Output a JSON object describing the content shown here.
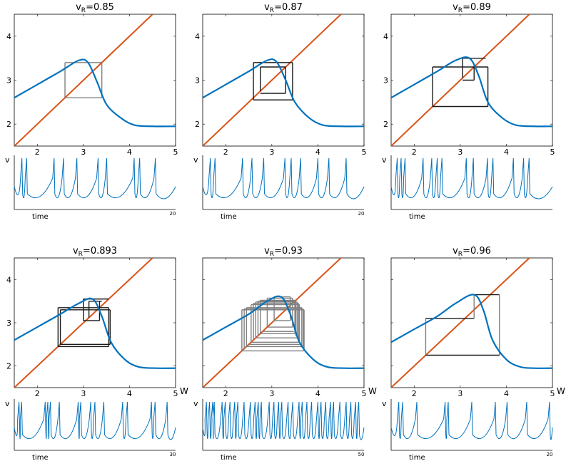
{
  "curve_color": "#0072BD",
  "diagonal_color": "#D95319",
  "cobweb_color_dark": "#1a1a1a",
  "cobweb_color_light": "#808080",
  "trace_color": "#0072BD",
  "chart_data": [
    {
      "type": "line",
      "title_main": "v",
      "title_sub": "R",
      "title_value": "=0.85",
      "xlabel": "",
      "ylabel": "",
      "xlim": [
        1.5,
        5
      ],
      "ylim": [
        1.5,
        4.5
      ],
      "xticks": [
        "2",
        "3",
        "4",
        "5"
      ],
      "yticks": [
        "2",
        "3",
        "4"
      ],
      "series": [
        {
          "x": [
            1.5,
            2.0,
            2.5,
            2.9,
            3.1,
            3.3,
            3.5,
            3.8,
            4.1,
            4.5,
            5.0
          ],
          "y": [
            2.6,
            2.9,
            3.2,
            3.45,
            3.4,
            2.95,
            2.45,
            2.15,
            1.98,
            1.95,
            1.95
          ]
        },
        {
          "x": [
            1.5,
            4.5
          ],
          "y": [
            1.5,
            4.5
          ]
        }
      ],
      "cobweb": {
        "segments": [
          [
            2.6,
            2.6,
            2.6,
            3.4
          ],
          [
            2.6,
            3.4,
            3.4,
            3.4
          ],
          [
            3.4,
            3.4,
            3.4,
            2.6
          ],
          [
            3.4,
            2.6,
            2.6,
            2.6
          ]
        ],
        "style": "light"
      },
      "trace": {
        "ylabel": "v",
        "xlabel": "time",
        "tmax": "20",
        "spike_times": [
          0.7,
          1.3,
          4.8,
          6.0,
          7.7,
          10.4,
          11.5,
          15.0,
          15.7,
          17.7
        ]
      }
    },
    {
      "type": "line",
      "title_main": "v",
      "title_sub": "R",
      "title_value": "=0.87",
      "xlabel": "",
      "ylabel": "",
      "xlim": [
        1.5,
        5
      ],
      "ylim": [
        1.5,
        4.5
      ],
      "xticks": [
        "2",
        "3",
        "4",
        "5"
      ],
      "yticks": [
        "2",
        "3",
        "4"
      ],
      "series": [
        {
          "x": [
            1.5,
            2.0,
            2.5,
            2.9,
            3.1,
            3.3,
            3.5,
            3.8,
            4.1,
            4.5,
            5.0
          ],
          "y": [
            2.6,
            2.9,
            3.2,
            3.45,
            3.42,
            3.0,
            2.5,
            2.15,
            1.98,
            1.95,
            1.95
          ]
        },
        {
          "x": [
            1.5,
            4.5
          ],
          "y": [
            1.5,
            4.5
          ]
        }
      ],
      "cobweb": {
        "segments": [
          [
            2.6,
            2.55,
            2.6,
            3.4
          ],
          [
            2.6,
            3.4,
            3.45,
            3.4
          ],
          [
            3.45,
            3.4,
            3.45,
            2.55
          ],
          [
            3.45,
            2.55,
            2.6,
            2.55
          ],
          [
            2.75,
            2.75,
            2.75,
            3.3
          ],
          [
            2.75,
            3.3,
            3.3,
            3.3
          ],
          [
            3.3,
            3.3,
            3.3,
            2.7
          ],
          [
            3.3,
            2.7,
            2.75,
            2.7
          ]
        ],
        "style": "dark"
      },
      "trace": {
        "ylabel": "v",
        "xlabel": "time",
        "tmax": "20",
        "spike_times": [
          0.7,
          1.3,
          4.8,
          6.0,
          7.5,
          10.2,
          11.0,
          12.2,
          14.4,
          15.8,
          18.0
        ]
      }
    },
    {
      "type": "line",
      "title_main": "v",
      "title_sub": "R",
      "title_value": "=0.89",
      "xlabel": "",
      "ylabel": "",
      "xlim": [
        1.5,
        5
      ],
      "ylim": [
        1.5,
        4.5
      ],
      "xticks": [
        "2",
        "3",
        "4",
        "5"
      ],
      "yticks": [
        "2",
        "3",
        "4"
      ],
      "series": [
        {
          "x": [
            1.5,
            2.0,
            2.5,
            2.9,
            3.2,
            3.4,
            3.6,
            3.9,
            4.2,
            4.6,
            5.0
          ],
          "y": [
            2.6,
            2.9,
            3.2,
            3.45,
            3.5,
            3.1,
            2.5,
            2.15,
            1.98,
            1.95,
            1.95
          ]
        },
        {
          "x": [
            1.5,
            4.5
          ],
          "y": [
            1.5,
            4.5
          ]
        }
      ],
      "cobweb": {
        "segments": [
          [
            2.4,
            2.4,
            2.4,
            3.3
          ],
          [
            2.4,
            3.3,
            3.6,
            3.3
          ],
          [
            3.6,
            3.3,
            3.6,
            2.4
          ],
          [
            3.6,
            2.4,
            2.4,
            2.4
          ],
          [
            3.05,
            3.05,
            3.05,
            3.5
          ],
          [
            3.05,
            3.5,
            3.55,
            3.5
          ],
          [
            3.3,
            3.0,
            3.3,
            3.35
          ],
          [
            3.05,
            3.0,
            3.3,
            3.0
          ]
        ],
        "style": "dark"
      },
      "trace": {
        "ylabel": "v",
        "xlabel": "time",
        "tmax": "",
        "spike_times": [
          0.5,
          1.0,
          1.5,
          3.8,
          4.9,
          5.6,
          6.2,
          9.3,
          10.2,
          12.0,
          12.7,
          15.3,
          16.6,
          17.3
        ]
      }
    },
    {
      "type": "line",
      "title_main": "v",
      "title_sub": "R",
      "title_value": "=0.893",
      "xlabel": "",
      "ylabel": "",
      "xlim": [
        1.5,
        5
      ],
      "ylim": [
        1.5,
        4.5
      ],
      "xticks": [
        "2",
        "3",
        "4",
        "5"
      ],
      "yticks": [
        "2",
        "3",
        "4"
      ],
      "series": [
        {
          "x": [
            1.5,
            2.0,
            2.5,
            2.9,
            3.2,
            3.4,
            3.6,
            3.9,
            4.2,
            4.6,
            5.0
          ],
          "y": [
            2.6,
            2.9,
            3.2,
            3.45,
            3.55,
            3.15,
            2.55,
            2.15,
            1.98,
            1.95,
            1.95
          ]
        },
        {
          "x": [
            1.5,
            4.5
          ],
          "y": [
            1.5,
            4.5
          ]
        }
      ],
      "cobweb": {
        "segments": [
          [
            2.45,
            2.45,
            2.45,
            3.35
          ],
          [
            2.45,
            3.35,
            3.55,
            3.35
          ],
          [
            3.55,
            3.35,
            3.55,
            2.45
          ],
          [
            3.55,
            2.45,
            2.45,
            2.45
          ],
          [
            2.5,
            2.5,
            2.5,
            3.3
          ],
          [
            2.5,
            3.3,
            3.58,
            3.3
          ],
          [
            3.58,
            3.3,
            3.58,
            2.5
          ],
          [
            3.58,
            2.5,
            2.5,
            2.5
          ],
          [
            3.0,
            3.05,
            3.0,
            3.55
          ],
          [
            3.0,
            3.55,
            3.55,
            3.55
          ],
          [
            3.35,
            3.05,
            3.35,
            3.5
          ],
          [
            3.0,
            3.05,
            3.35,
            3.05
          ],
          [
            3.12,
            3.12,
            3.12,
            3.5
          ],
          [
            3.12,
            3.5,
            3.4,
            3.5
          ]
        ],
        "style": "dark"
      },
      "trace": {
        "ylabel": "v",
        "xlabel": "time",
        "tmax": "30",
        "spike_times": [
          0.5,
          1.0,
          5.5,
          6.0,
          6.5,
          8.2,
          11.8,
          12.3,
          14.2,
          15.0,
          16.7,
          20.3,
          21.2,
          25.8,
          26.5,
          28.8
        ]
      }
    },
    {
      "type": "line",
      "title_main": "v",
      "title_sub": "R",
      "title_value": "=0.93",
      "xlabel": "",
      "ylabel": "",
      "xlim": [
        1.5,
        5
      ],
      "ylim": [
        1.5,
        4.5
      ],
      "xticks": [
        "2",
        "3",
        "4",
        "5"
      ],
      "yticks": [
        "",
        "",
        ""
      ],
      "series": [
        {
          "x": [
            1.5,
            2.0,
            2.5,
            2.9,
            3.2,
            3.4,
            3.6,
            3.9,
            4.2,
            4.6,
            5.0
          ],
          "y": [
            2.6,
            2.9,
            3.2,
            3.5,
            3.6,
            3.2,
            2.55,
            2.15,
            1.98,
            1.95,
            1.95
          ]
        },
        {
          "x": [
            1.5,
            4.5
          ],
          "y": [
            1.5,
            4.5
          ]
        }
      ],
      "cobweb": {
        "segments": [
          [
            2.35,
            2.35,
            2.35,
            3.3
          ],
          [
            2.35,
            3.3,
            3.7,
            3.3
          ],
          [
            3.7,
            3.3,
            3.7,
            2.35
          ],
          [
            3.7,
            2.35,
            2.35,
            2.35
          ],
          [
            2.45,
            2.45,
            2.45,
            3.35
          ],
          [
            2.45,
            3.35,
            3.65,
            3.35
          ],
          [
            3.65,
            3.35,
            3.65,
            2.45
          ],
          [
            3.65,
            2.45,
            2.45,
            2.45
          ],
          [
            2.55,
            2.55,
            2.55,
            3.42
          ],
          [
            2.55,
            3.42,
            3.6,
            3.42
          ],
          [
            3.6,
            3.42,
            3.6,
            2.55
          ],
          [
            3.6,
            2.55,
            2.55,
            2.55
          ],
          [
            2.65,
            2.65,
            2.65,
            3.48
          ],
          [
            2.65,
            3.48,
            3.55,
            3.48
          ],
          [
            3.55,
            3.48,
            3.55,
            2.65
          ],
          [
            3.55,
            2.65,
            2.65,
            2.65
          ],
          [
            2.75,
            2.75,
            2.75,
            3.52
          ],
          [
            2.75,
            3.52,
            3.5,
            3.52
          ],
          [
            3.5,
            3.52,
            3.5,
            2.75
          ],
          [
            3.5,
            2.75,
            2.75,
            2.75
          ],
          [
            2.9,
            2.9,
            2.9,
            3.57
          ],
          [
            2.9,
            3.57,
            3.45,
            3.57
          ],
          [
            3.45,
            3.57,
            3.45,
            2.9
          ],
          [
            3.45,
            2.9,
            2.9,
            2.9
          ],
          [
            3.05,
            3.05,
            3.05,
            3.6
          ],
          [
            3.05,
            3.6,
            3.4,
            3.6
          ],
          [
            3.4,
            3.6,
            3.4,
            3.05
          ],
          [
            3.4,
            3.05,
            3.05,
            3.05
          ],
          [
            2.4,
            2.4,
            2.4,
            3.32
          ],
          [
            2.4,
            3.32,
            3.68,
            3.32
          ],
          [
            3.68,
            3.32,
            3.68,
            2.4
          ],
          [
            2.6,
            2.6,
            2.6,
            3.45
          ],
          [
            2.6,
            3.45,
            3.58,
            3.45
          ],
          [
            3.58,
            3.45,
            3.58,
            2.6
          ],
          [
            2.7,
            2.7,
            2.7,
            3.5
          ],
          [
            2.7,
            3.5,
            3.52,
            3.5
          ],
          [
            3.52,
            3.5,
            3.52,
            2.7
          ],
          [
            2.5,
            2.5,
            3.62,
            2.5
          ],
          [
            2.8,
            2.8,
            3.48,
            2.8
          ]
        ],
        "style": "light"
      },
      "trace": {
        "ylabel": "v",
        "xlabel": "time",
        "tmax": "50",
        "spike_times": [
          0.5,
          1.5,
          2.5,
          3.0,
          5.5,
          6.5,
          8.0,
          9.5,
          10.5,
          12.5,
          14.5,
          16.0,
          17.0,
          18.0,
          20.5,
          22.0,
          23.5,
          24.5,
          26.5,
          28.0,
          30.0,
          31.0,
          32.5,
          34.0,
          36.0,
          37.0,
          38.5,
          40.0,
          41.0,
          43.0,
          45.0,
          46.5,
          48.0,
          49.0
        ]
      }
    },
    {
      "type": "line",
      "title_main": "v",
      "title_sub": "R",
      "title_value": "=0.96",
      "xlabel": "",
      "ylabel": "",
      "xlim": [
        1.5,
        5
      ],
      "ylim": [
        1.5,
        4.5
      ],
      "xticks": [
        "2",
        "3",
        "4",
        "5"
      ],
      "yticks": [
        "",
        "",
        ""
      ],
      "series": [
        {
          "x": [
            1.5,
            2.0,
            2.5,
            2.9,
            3.3,
            3.5,
            3.7,
            4.0,
            4.3,
            4.6,
            5.0
          ],
          "y": [
            2.55,
            2.85,
            3.15,
            3.45,
            3.65,
            3.3,
            2.6,
            2.15,
            1.98,
            1.95,
            1.95
          ]
        },
        {
          "x": [
            1.5,
            4.5
          ],
          "y": [
            1.5,
            4.5
          ]
        }
      ],
      "cobweb": {
        "segments": [
          [
            2.25,
            2.25,
            2.25,
            3.1
          ],
          [
            2.25,
            3.1,
            3.3,
            3.1
          ],
          [
            3.3,
            3.1,
            3.3,
            3.65
          ],
          [
            3.3,
            3.65,
            3.85,
            3.65
          ],
          [
            3.85,
            3.65,
            3.85,
            2.25
          ],
          [
            3.85,
            2.25,
            2.25,
            2.25
          ]
        ],
        "style": "mixed"
      },
      "trace": {
        "ylabel": "v",
        "xlabel": "time",
        "tmax": "20",
        "spike_times": [
          0.7,
          1.2,
          3.0,
          6.6,
          7.0,
          10.0,
          13.0,
          14.5,
          17.0,
          19.9
        ]
      }
    }
  ],
  "panel_extra_labels": {
    "w_axis": "W"
  }
}
